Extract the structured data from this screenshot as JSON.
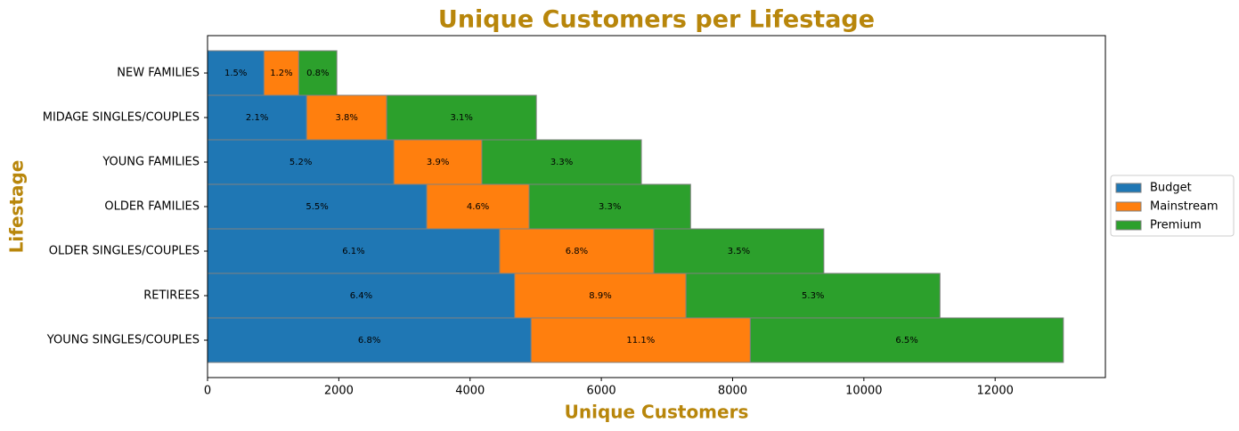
{
  "chart_data": {
    "type": "barh_stacked",
    "title": "Unique Customers per Lifestage",
    "x_label": "Unique Customers",
    "y_label": "Lifestage",
    "categories": [
      "NEW FAMILIES",
      "MIDAGE SINGLES/COUPLES",
      "YOUNG FAMILIES",
      "OLDER FAMILIES",
      "OLDER SINGLES/COUPLES",
      "RETIREES",
      "YOUNG SINGLES/COUPLES"
    ],
    "series": [
      {
        "name": "Budget",
        "color": "#1f77b4",
        "values": [
          860,
          1510,
          2840,
          3340,
          4450,
          4680,
          4930
        ],
        "percent_labels": [
          "1.5%",
          "2.1%",
          "5.2%",
          "5.5%",
          "6.1%",
          "6.4%",
          "6.8%"
        ]
      },
      {
        "name": "Mainstream",
        "color": "#ff7f0e",
        "values": [
          530,
          1220,
          1340,
          1560,
          2350,
          2610,
          3340
        ],
        "percent_labels": [
          "1.2%",
          "3.8%",
          "3.9%",
          "4.6%",
          "6.8%",
          "8.9%",
          "11.1%"
        ]
      },
      {
        "name": "Premium",
        "color": "#2ca02c",
        "values": [
          580,
          2280,
          2430,
          2460,
          2590,
          3870,
          4770
        ],
        "percent_labels": [
          "0.8%",
          "3.1%",
          "3.3%",
          "3.3%",
          "3.5%",
          "5.3%",
          "6.5%"
        ]
      }
    ],
    "xlim": [
      0,
      13680
    ],
    "xticks": [
      0,
      2000,
      4000,
      6000,
      8000,
      10000,
      12000
    ],
    "legend": "right"
  }
}
